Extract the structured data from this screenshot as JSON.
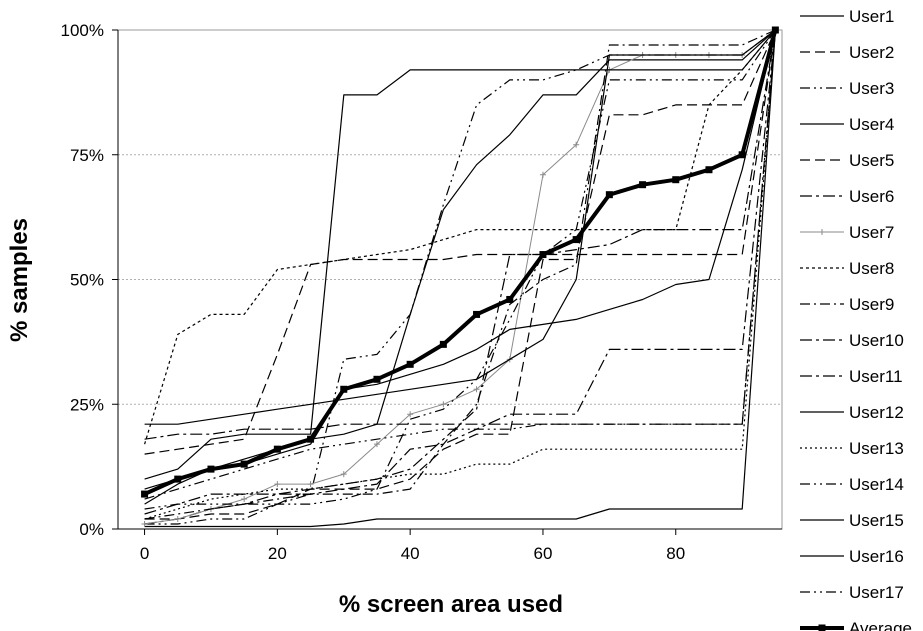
{
  "chart_data": {
    "type": "line",
    "xlabel": "% screen area used",
    "ylabel": "% samples",
    "xlim": [
      -4,
      96
    ],
    "ylim": [
      0,
      100
    ],
    "xticks": [
      {
        "v": 0,
        "label": "0"
      },
      {
        "v": 20,
        "label": "20"
      },
      {
        "v": 40,
        "label": "40"
      },
      {
        "v": 60,
        "label": "60"
      },
      {
        "v": 80,
        "label": "80"
      }
    ],
    "yticks": [
      {
        "v": 0,
        "label": "0%"
      },
      {
        "v": 25,
        "label": "25%"
      },
      {
        "v": 50,
        "label": "50%"
      },
      {
        "v": 75,
        "label": "75%"
      },
      {
        "v": 100,
        "label": "100%"
      }
    ],
    "grid": {
      "horizontal": true,
      "style": "dashed"
    },
    "legend_position": "right",
    "x": [
      0,
      5,
      10,
      15,
      20,
      25,
      30,
      35,
      40,
      45,
      50,
      55,
      60,
      65,
      70,
      75,
      80,
      85,
      90,
      95
    ],
    "series": [
      {
        "name": "User1",
        "dash": "",
        "width": 1.2,
        "values": [
          0.5,
          0.5,
          0.5,
          0.5,
          0.5,
          0.5,
          1,
          2,
          2,
          2,
          2,
          2,
          2,
          2,
          4,
          4,
          4,
          4,
          4,
          100
        ]
      },
      {
        "name": "User2",
        "dash": "10,5",
        "width": 1.2,
        "values": [
          15,
          16,
          17,
          18,
          35,
          53,
          54,
          54,
          54,
          54,
          55,
          55,
          55,
          55,
          55,
          55,
          55,
          55,
          55,
          100
        ]
      },
      {
        "name": "User3",
        "dash": "10,4,2,4,2,4",
        "width": 1.2,
        "values": [
          1,
          1,
          2,
          2,
          5,
          7,
          34,
          35,
          43,
          65,
          85,
          90,
          90,
          92,
          95,
          95,
          95,
          95,
          95,
          100
        ]
      },
      {
        "name": "User4",
        "dash": "",
        "width": 1.2,
        "values": [
          8,
          10,
          12,
          14,
          16,
          18,
          19,
          21,
          43,
          64,
          73,
          79,
          87,
          87,
          94,
          94,
          94,
          94,
          94,
          100
        ]
      },
      {
        "name": "User5",
        "dash": "10,5",
        "width": 1.2,
        "values": [
          2,
          2,
          3,
          3,
          5,
          8,
          8,
          8,
          10,
          16,
          19,
          19,
          54,
          54,
          83,
          83,
          85,
          85,
          85,
          100
        ]
      },
      {
        "name": "User6",
        "dash": "12,4,3,4",
        "width": 1.2,
        "values": [
          1,
          2,
          4,
          5,
          7,
          8,
          9,
          10,
          12,
          18,
          24,
          55,
          55,
          56,
          57,
          60,
          60,
          60,
          60,
          100
        ]
      },
      {
        "name": "User7",
        "dash": "",
        "width": 1,
        "color": "#8a8a8a",
        "marker": "plus",
        "values": [
          1,
          2,
          4,
          6,
          9,
          9,
          11,
          17,
          23,
          25,
          28,
          34,
          71,
          77,
          92,
          95,
          95,
          95,
          95,
          100
        ]
      },
      {
        "name": "User8",
        "dash": "3,3",
        "width": 1.2,
        "values": [
          17,
          39,
          43,
          43,
          52,
          53,
          54,
          55,
          56,
          58,
          60,
          60,
          60,
          60,
          60,
          60,
          60,
          85,
          92,
          100
        ]
      },
      {
        "name": "User9",
        "dash": "10,4,2,4",
        "width": 1.2,
        "values": [
          2,
          3,
          4,
          5,
          6,
          7,
          7,
          7,
          8,
          17,
          25,
          45,
          50,
          53,
          97,
          97,
          97,
          97,
          97,
          100
        ]
      },
      {
        "name": "User10",
        "dash": "12,4,3,4",
        "width": 1.2,
        "values": [
          3,
          5,
          7,
          7,
          7,
          7,
          8,
          9,
          16,
          17,
          20,
          23,
          23,
          23,
          36,
          36,
          36,
          36,
          36,
          100
        ]
      },
      {
        "name": "User11",
        "dash": "12,4,3,4",
        "width": 1.2,
        "values": [
          18,
          19,
          19,
          20,
          20,
          20,
          21,
          21,
          21,
          21,
          21,
          21,
          21,
          21,
          21,
          21,
          21,
          21,
          21,
          100
        ]
      },
      {
        "name": "User12",
        "dash": "",
        "width": 1.2,
        "values": [
          21,
          21,
          22,
          23,
          24,
          25,
          26,
          27,
          28,
          29,
          30,
          34,
          38,
          50,
          95,
          95,
          95,
          95,
          95,
          100
        ]
      },
      {
        "name": "User13",
        "dash": "2,3",
        "width": 1.2,
        "values": [
          2,
          4,
          6,
          7,
          8,
          8,
          9,
          10,
          11,
          11,
          13,
          13,
          16,
          16,
          16,
          16,
          16,
          16,
          16,
          100
        ]
      },
      {
        "name": "User14",
        "dash": "10,4,2,4,2,4",
        "width": 1.2,
        "values": [
          4,
          5,
          5,
          5,
          5,
          5,
          6,
          8,
          22,
          24,
          30,
          42,
          55,
          60,
          90,
          90,
          90,
          90,
          90,
          100
        ]
      },
      {
        "name": "User15",
        "dash": "",
        "width": 1.2,
        "values": [
          10,
          12,
          18,
          19,
          19,
          19,
          87,
          87,
          92,
          92,
          92,
          92,
          92,
          92,
          92,
          92,
          92,
          92,
          92,
          100
        ]
      },
      {
        "name": "User16",
        "dash": "",
        "width": 1.2,
        "values": [
          5,
          9,
          12,
          13,
          15,
          17,
          28,
          29,
          31,
          33,
          36,
          40,
          41,
          42,
          44,
          46,
          49,
          50,
          72,
          100
        ]
      },
      {
        "name": "User17",
        "dash": "10,4,2,4,2,4",
        "width": 1.2,
        "values": [
          6,
          8,
          10,
          12,
          14,
          16,
          17,
          18,
          19,
          20,
          20,
          20,
          21,
          21,
          21,
          21,
          21,
          21,
          21,
          100
        ]
      },
      {
        "name": "Average",
        "dash": "",
        "width": 4,
        "marker": "square",
        "values": [
          7,
          10,
          12,
          13,
          16,
          18,
          28,
          30,
          33,
          37,
          43,
          46,
          55,
          58,
          67,
          69,
          70,
          72,
          75,
          100
        ]
      }
    ]
  }
}
